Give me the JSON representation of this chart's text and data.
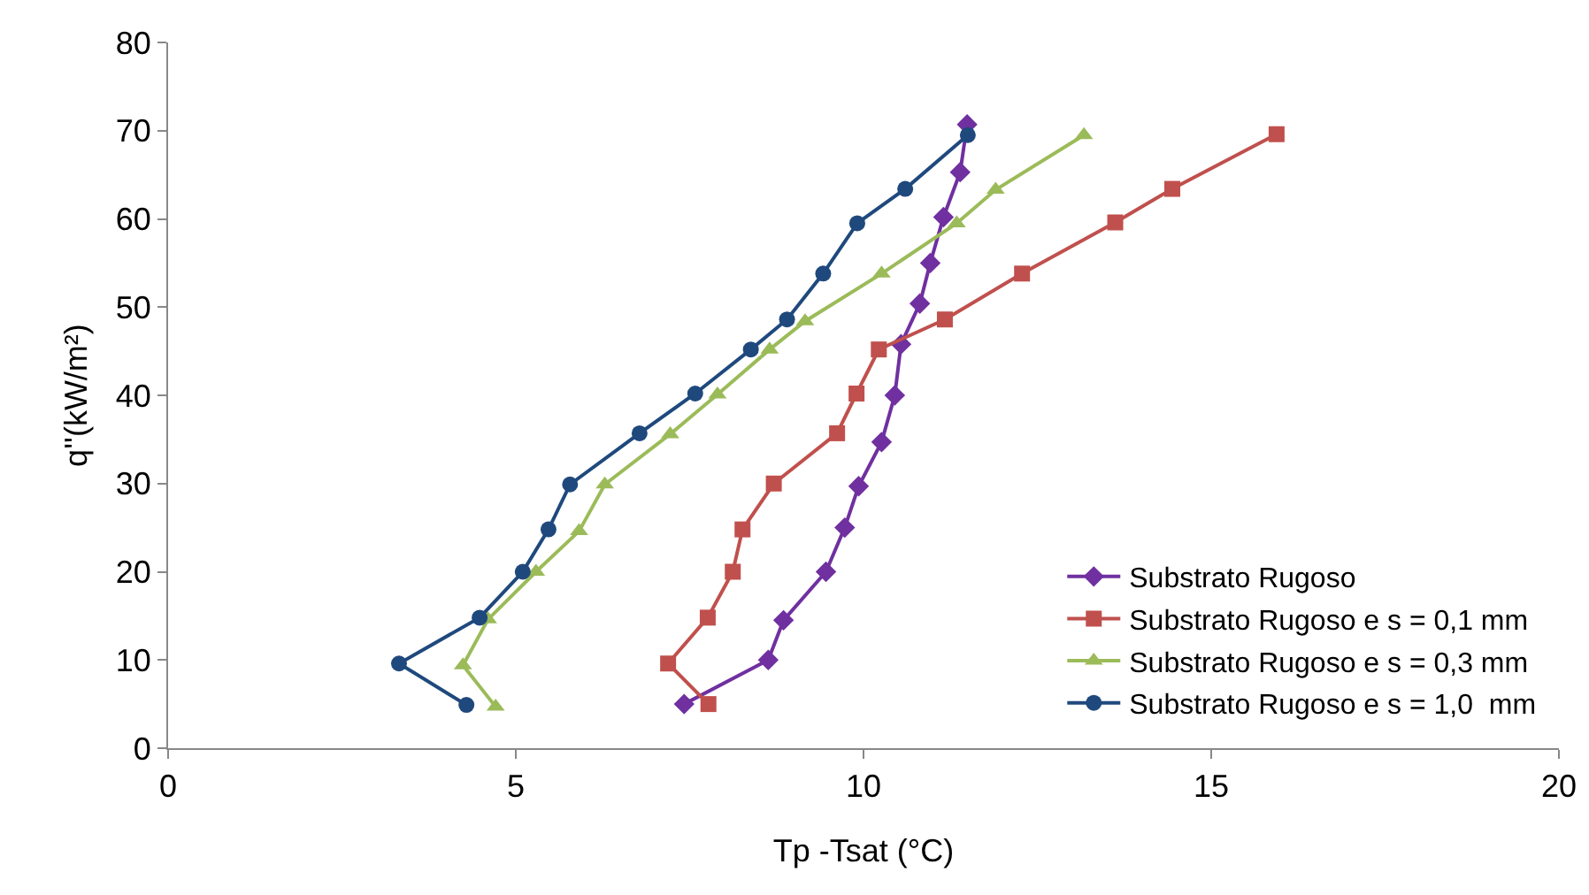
{
  "chart_data": {
    "type": "line",
    "xlabel": "Tp -Tsat (°C)",
    "ylabel": "q''(kW/m²)",
    "xlim": [
      0,
      20
    ],
    "xticks": [
      0,
      5,
      10,
      15,
      20
    ],
    "ylim": [
      0,
      80
    ],
    "yticks": [
      0,
      10,
      20,
      30,
      40,
      50,
      60,
      70,
      80
    ],
    "grid": false,
    "legend": "bottom right",
    "series": [
      {
        "name": "Substrato Rugoso",
        "color": "#7030a0",
        "marker": "diamond",
        "x": [
          7.42,
          8.63,
          8.85,
          9.46,
          9.73,
          9.93,
          10.26,
          10.45,
          10.54,
          10.81,
          10.96,
          11.15,
          11.39,
          11.49
        ],
        "values": [
          5,
          10,
          14.5,
          20,
          25,
          29.7,
          34.7,
          40,
          45.8,
          50.4,
          55,
          60.2,
          65.3,
          70.7
        ]
      },
      {
        "name": "Substrato Rugoso e s = 0,1 mm",
        "color": "#c0504d",
        "marker": "square",
        "x": [
          7.77,
          7.19,
          7.76,
          8.12,
          8.26,
          8.71,
          9.62,
          9.9,
          10.22,
          11.17,
          12.28,
          13.62,
          14.44,
          15.94
        ],
        "values": [
          5,
          9.6,
          14.8,
          20,
          24.8,
          30,
          35.7,
          40.2,
          45.2,
          48.6,
          53.8,
          59.6,
          63.4,
          69.6
        ]
      },
      {
        "name": "Substrato Rugoso e s = 0,3 mm",
        "color": "#9bbb59",
        "marker": "triangle",
        "x": [
          4.71,
          4.24,
          4.6,
          5.29,
          5.91,
          6.28,
          7.22,
          7.9,
          8.65,
          9.16,
          10.26,
          11.34,
          11.9,
          13.17
        ],
        "values": [
          4.7,
          9.4,
          14.6,
          20,
          24.6,
          29.9,
          35.6,
          40.1,
          45.2,
          48.4,
          53.8,
          59.5,
          63.3,
          69.5
        ]
      },
      {
        "name": "Substrato Rugoso e s = 1,0  mm",
        "color": "#1f497d",
        "marker": "circle",
        "x": [
          4.29,
          3.32,
          4.48,
          5.1,
          5.47,
          5.78,
          6.78,
          7.58,
          8.38,
          8.9,
          9.42,
          9.91,
          10.6,
          11.5
        ],
        "values": [
          4.9,
          9.6,
          14.8,
          20,
          24.8,
          29.9,
          35.7,
          40.2,
          45.2,
          48.6,
          53.8,
          59.5,
          63.4,
          69.5
        ]
      }
    ]
  }
}
